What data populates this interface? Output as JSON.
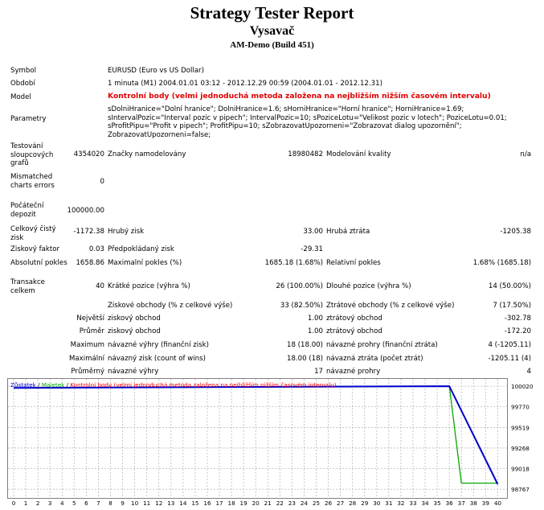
{
  "header": {
    "title": "Strategy Tester Report",
    "subtitle": "Vysavač",
    "account": "AM-Demo (Build 451)"
  },
  "info": {
    "symbol_label": "Symbol",
    "symbol_value": "EURUSD (Euro vs US Dollar)",
    "period_label": "Období",
    "period_value": "1 minuta (M1) 2004.01.01 03:12 - 2012.12.29 00:59 (2004.01.01 - 2012.12.31)",
    "model_label": "Model",
    "model_value": "Kontrolní body (velmi jednoduchá metoda založena na nejbližším nižším časovém intervalu)",
    "params_label": "Parametry",
    "params_value": "sDolniHranice=\"Dolní hranice\"; DolniHranice=1.6; sHorniHranice=\"Horní hranice\"; HorniHranice=1.69; sIntervalPozic=\"Interval pozic v pipech\"; IntervalPozic=10; sPoziceLotu=\"Velikost pozic v lotech\"; PoziceLotu=0.01; sProfitPipu=\"Profit v pipech\"; ProfitPipu=10; sZobrazovatUpozorneni=\"Zobrazovat dialog upozornění\"; ZobrazovatUpozorneni=false;"
  },
  "stats": {
    "bars_label": "Testování sloupcových grafů",
    "bars_value": "4354020",
    "ticks_label": "Značky namodelovány",
    "ticks_value": "18980482",
    "quality_label": "Modelování kvality",
    "quality_value": "n/a",
    "mismatch_label": "Mismatched charts errors",
    "mismatch_value": "0",
    "deposit_label": "Počáteční depozit",
    "deposit_value": "100000.00",
    "net_label": "Celkový čistý zisk",
    "net_value": "-1172.38",
    "gross_profit_label": "Hrubý zisk",
    "gross_profit_value": "33.00",
    "gross_loss_label": "Hrubá ztráta",
    "gross_loss_value": "-1205.38",
    "pf_label": "Ziskový faktor",
    "pf_value": "0.03",
    "expected_label": "Předpokládaný zisk",
    "expected_value": "-29.31",
    "abs_dd_label": "Absolutní pokles",
    "abs_dd_value": "1658.86",
    "max_dd_label": "Maximalní pokles (%)",
    "max_dd_value": "1685.18 (1.68%)",
    "rel_dd_label": "Relativní pokles",
    "rel_dd_value": "1.68% (1685.18)",
    "trades_label": "Transakce celkem",
    "trades_value": "40",
    "short_label": "Krátké pozice (výhra %)",
    "short_value": "26 (100.00%)",
    "long_label": "Dlouhé pozice (výhra %)",
    "long_value": "14 (50.00%)",
    "profit_trades_label": "Ziskové obchody (% z celkové výše)",
    "profit_trades_value": "33 (82.50%)",
    "loss_trades_label": "Ztrátové obchody (% z celkové výše)",
    "loss_trades_value": "7 (17.50%)",
    "largest_prefix": "Největší",
    "largest_profit_label": "ziskový obchod",
    "largest_profit_value": "1.00",
    "largest_loss_label": "ztrátový obchod",
    "largest_loss_value": "-302.78",
    "average_prefix": "Průměr",
    "average_profit_label": "ziskový obchod",
    "average_profit_value": "1.00",
    "average_loss_label": "ztrátový obchod",
    "average_loss_value": "-172.20",
    "maximum_prefix": "Maximum",
    "max_wins_label": "návazné výhry (finanční zisk)",
    "max_wins_value": "18 (18.00)",
    "max_losses_label": "návazné prohry (finanční ztráta)",
    "max_losses_value": "4 (-1205.11)",
    "maximal_prefix": "Maximální",
    "maximal_wins_label": "návazný zisk (count of wins)",
    "maximal_wins_value": "18.00 (18)",
    "maximal_losses_label": "návazná ztráta (počet ztrát)",
    "maximal_losses_value": "-1205.11 (4)",
    "avg_prefix": "Průměrný",
    "avg_wins_label": "návazné výhry",
    "avg_wins_value": "17",
    "avg_losses_label": "návazné prohry",
    "avg_losses_value": "4"
  },
  "chart_data": {
    "type": "line",
    "legend": {
      "balance": "Zůstatek",
      "equity": "Majetek",
      "model": "Kontrolní body (velmi jednoduchá metoda založena na nejbližším nižším časovém intervalu)",
      "separator": " / "
    },
    "colors": {
      "balance": "#0000cc",
      "equity": "#00aa00",
      "model": "#ff0000",
      "grid": "#b8b8b8"
    },
    "xlim": [
      0,
      41
    ],
    "ylim": [
      98700,
      100070
    ],
    "x_ticks": [
      0,
      1,
      2,
      3,
      4,
      5,
      6,
      7,
      8,
      9,
      10,
      11,
      12,
      13,
      14,
      15,
      16,
      17,
      18,
      19,
      20,
      21,
      22,
      23,
      24,
      25,
      26,
      27,
      28,
      29,
      30,
      31,
      32,
      33,
      34,
      35,
      36,
      37,
      38,
      39,
      40
    ],
    "y_ticks": [
      100020,
      99770,
      99519,
      99268,
      99018,
      98767
    ],
    "grid": true,
    "series": [
      {
        "name": "Zůstatek",
        "x": [
          0,
          36,
          40
        ],
        "y": [
          100000,
          100020,
          98827
        ]
      },
      {
        "name": "Majetek",
        "x": [
          0,
          36,
          37,
          40
        ],
        "y": [
          100000,
          100020,
          98841,
          98841
        ]
      }
    ]
  }
}
